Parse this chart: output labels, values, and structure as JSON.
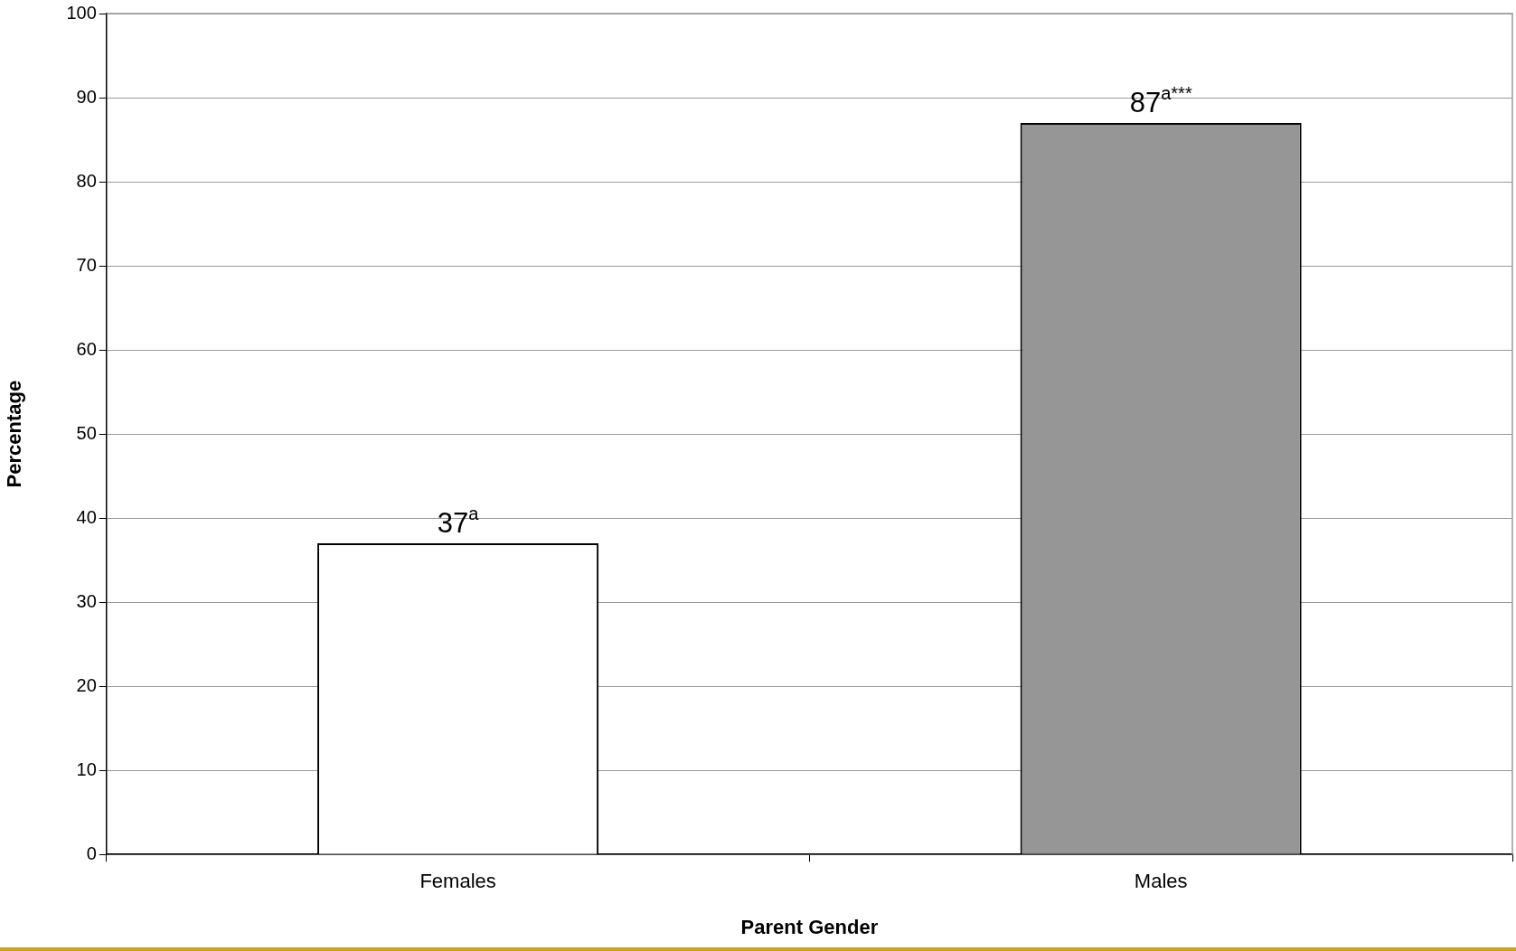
{
  "chart_data": {
    "type": "bar",
    "xlabel": "Parent Gender",
    "ylabel": "Percentage",
    "categories": [
      "Females",
      "Males"
    ],
    "values": [
      37,
      87
    ],
    "colors": [
      "#ffffff",
      "#969696"
    ],
    "value_labels": [
      "37$^{a}$",
      "87$^{a***}$"
    ],
    "ylim": [
      0,
      100
    ],
    "yticks": [
      0,
      10,
      20,
      30,
      40,
      50,
      60,
      70,
      80,
      90,
      100
    ],
    "grid": "y"
  }
}
